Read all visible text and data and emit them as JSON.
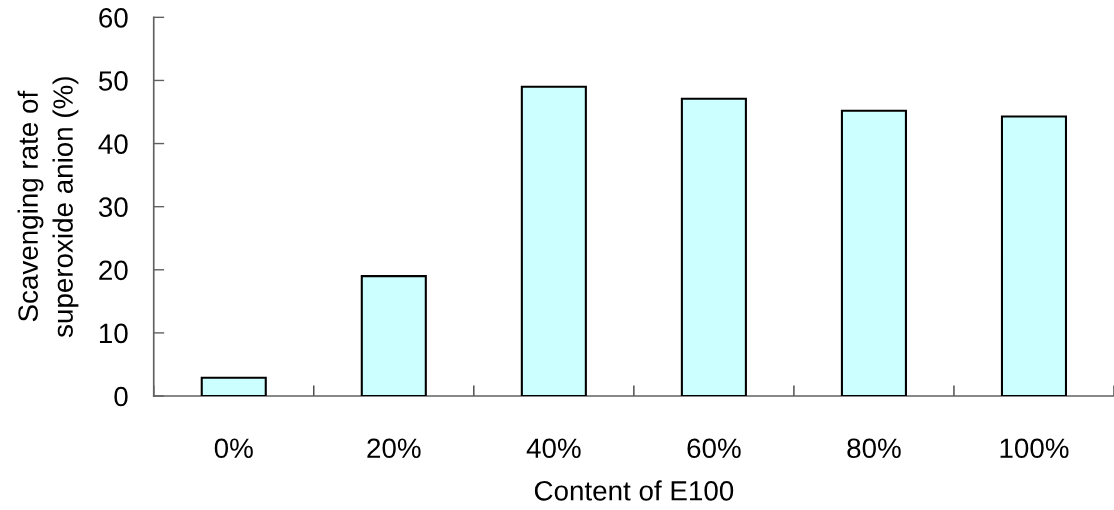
{
  "chart_data": {
    "type": "bar",
    "xlabel": "Content of E100",
    "ylabel": "Scavenging rate of\nsuperoxide anion (%)",
    "categories": [
      "0%",
      "20%",
      "40%",
      "60%",
      "80%",
      "100%"
    ],
    "values": [
      2.9,
      19.0,
      49.0,
      47.1,
      45.2,
      44.3
    ],
    "color": "#ccffff",
    "ylim": [
      0,
      60
    ],
    "yticks": [
      0,
      10,
      20,
      30,
      40,
      50,
      60
    ]
  }
}
